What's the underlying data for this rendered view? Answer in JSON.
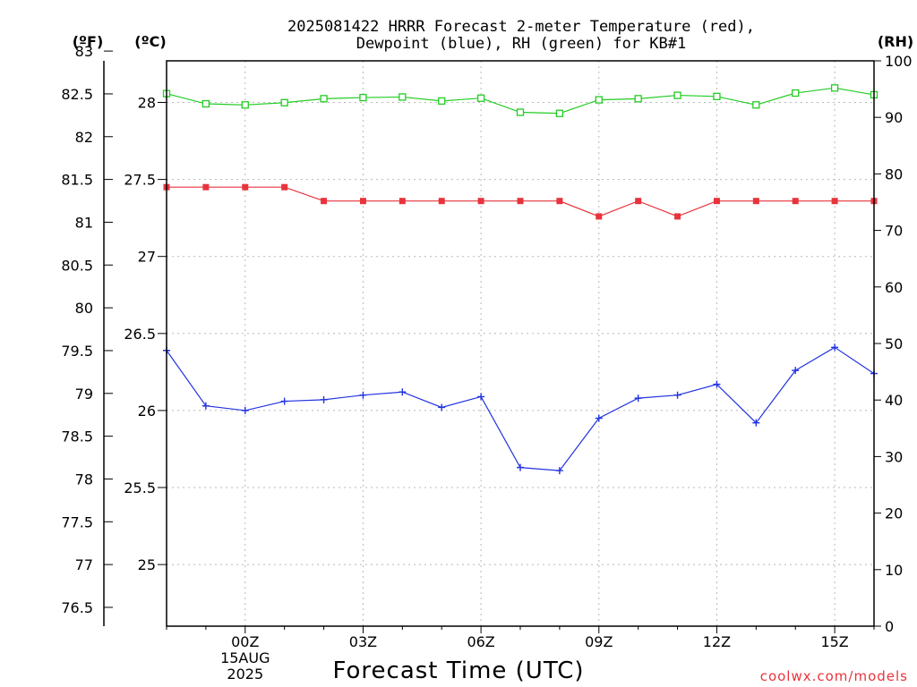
{
  "chart_data": {
    "type": "line",
    "title_lines": [
      "2025081422 HRRR Forecast 2-meter Temperature (red),",
      "Dewpoint (blue), RH (green) for KB#1"
    ],
    "unit_f": "(ºF)",
    "unit_c": "(ºC)",
    "unit_rh": "(RH)",
    "xlabel": "Forecast Time (UTC)",
    "credit": "coolwx.com/models",
    "x_hours": [
      -2,
      -1,
      0,
      1,
      2,
      3,
      4,
      5,
      6,
      7,
      8,
      9,
      10,
      11,
      12,
      13,
      14,
      15,
      16
    ],
    "xlim": [
      -2,
      16
    ],
    "x_ticks": [
      {
        "hour": 0,
        "label": "00Z",
        "sub": [
          "15AUG",
          "2025"
        ]
      },
      {
        "hour": 3,
        "label": "03Z"
      },
      {
        "hour": 6,
        "label": "06Z"
      },
      {
        "hour": 9,
        "label": "09Z"
      },
      {
        "hour": 12,
        "label": "12Z"
      },
      {
        "hour": 15,
        "label": "15Z"
      }
    ],
    "celsius_axis": {
      "ylim": [
        24.6,
        28.27
      ],
      "ticks": [
        "25",
        "25.5",
        "26",
        "26.5",
        "27",
        "27.5",
        "28"
      ]
    },
    "fahrenheit_axis": {
      "ticks": [
        "76.5",
        "77",
        "77.5",
        "78",
        "78.5",
        "79",
        "79.5",
        "80",
        "80.5",
        "81",
        "81.5",
        "82",
        "82.5",
        "83"
      ]
    },
    "rh_axis": {
      "ylim": [
        0,
        100
      ],
      "ticks": [
        "0",
        "10",
        "20",
        "30",
        "40",
        "50",
        "60",
        "70",
        "80",
        "90",
        "100"
      ]
    },
    "series": [
      {
        "name": "Temperature",
        "axis": "c",
        "color": "#e8333c",
        "marker": "filled-square",
        "values": [
          27.45,
          27.45,
          27.45,
          27.45,
          27.36,
          27.36,
          27.36,
          27.36,
          27.36,
          27.36,
          27.36,
          27.26,
          27.36,
          27.26,
          27.36,
          27.36,
          27.36,
          27.36,
          27.36
        ]
      },
      {
        "name": "Dewpoint",
        "axis": "c",
        "color": "#2233e0",
        "marker": "plus",
        "values": [
          26.39,
          26.03,
          26.0,
          26.06,
          26.07,
          26.1,
          26.12,
          26.02,
          26.09,
          25.63,
          25.61,
          25.95,
          26.08,
          26.1,
          26.17,
          25.92,
          26.26,
          26.41,
          26.24
        ]
      },
      {
        "name": "RH",
        "axis": "rh",
        "color": "#22cc22",
        "marker": "open-square",
        "values": [
          94.2,
          92.4,
          92.2,
          92.6,
          93.3,
          93.5,
          93.6,
          92.9,
          93.4,
          90.9,
          90.7,
          93.1,
          93.3,
          93.9,
          93.7,
          92.2,
          94.3,
          95.2,
          94.0
        ]
      }
    ]
  }
}
